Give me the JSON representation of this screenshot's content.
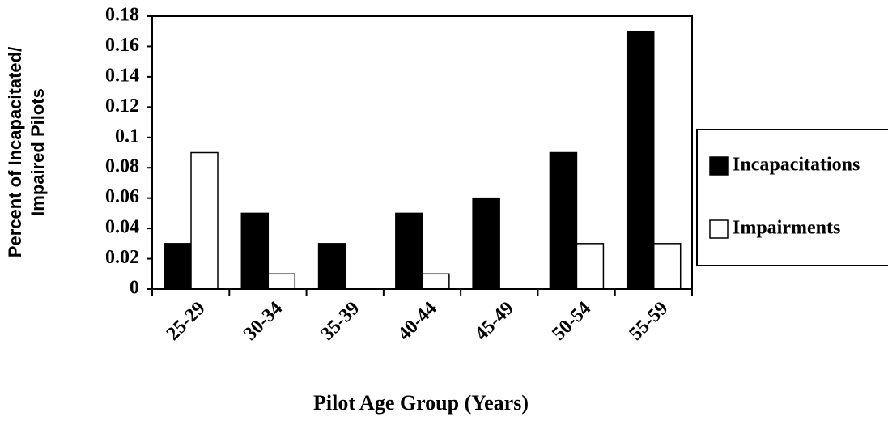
{
  "chart_data": {
    "type": "bar",
    "x_label": "Pilot Age Group (Years)",
    "y_label": [
      "Percent of Incapacitated/",
      "Impaired Pilots"
    ],
    "categories": [
      "25-29",
      "30-34",
      "35-39",
      "40-44",
      "45-49",
      "50-54",
      "55-59"
    ],
    "series": [
      {
        "name": "Incapacitations",
        "color": "#000000",
        "values": [
          0.03,
          0.05,
          0.03,
          0.05,
          0.06,
          0.09,
          0.17
        ]
      },
      {
        "name": "Impairments",
        "color": "#ffffff",
        "values": [
          0.09,
          0.01,
          0,
          0.01,
          0,
          0.03,
          0.03
        ]
      }
    ],
    "ylim": [
      0,
      0.18
    ],
    "yticks": [
      0,
      0.02,
      0.04,
      0.06,
      0.08,
      0.1,
      0.12,
      0.14,
      0.16,
      0.18
    ],
    "grid": false,
    "legend": "right"
  }
}
